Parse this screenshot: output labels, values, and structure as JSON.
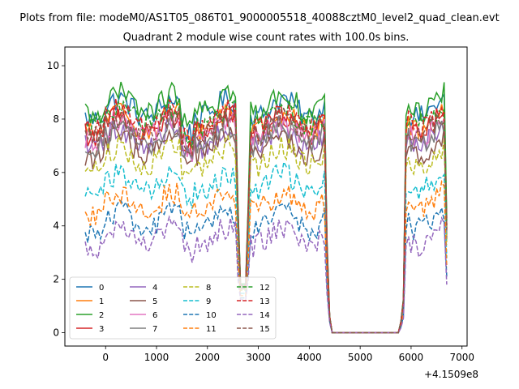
{
  "chart_data": {
    "type": "line",
    "suptitle": "Plots from file: modeM0/AS1T05_086T01_9000005518_40088cztM0_level2_quad_clean.evt",
    "title": "Quadrant 2 module wise count rates with 100.0s bins.",
    "xlabel": "",
    "ylabel": "",
    "x_offset_label": "+4.1509e8",
    "xlim": [
      -800,
      7100
    ],
    "ylim": [
      -0.5,
      10.7
    ],
    "x_ticks": [
      0,
      1000,
      2000,
      3000,
      4000,
      5000,
      6000,
      7000
    ],
    "x_tick_labels": [
      "0",
      "1000",
      "2000",
      "3000",
      "4000",
      "5000",
      "6000",
      "7000"
    ],
    "y_ticks": [
      0,
      2,
      4,
      6,
      8,
      10
    ],
    "y_tick_labels": [
      "0",
      "2",
      "4",
      "6",
      "8",
      "10"
    ],
    "x_start": -400,
    "x_step": 100,
    "x_end": 6700,
    "gap_range": [
      4450,
      5750
    ],
    "dips": [
      {
        "x": 2700,
        "depth": 0.12
      }
    ],
    "segments": [
      {
        "start": -400,
        "end": 2600
      },
      {
        "start": 2800,
        "end": 4300
      },
      {
        "start": 5900,
        "end": 6700
      }
    ],
    "legend_columns": 4,
    "legend_location": "lower left",
    "series": [
      {
        "name": "0",
        "color": "#1f77b4",
        "dash": "solid",
        "level": 8.4
      },
      {
        "name": "1",
        "color": "#ff7f0e",
        "dash": "solid",
        "level": 7.9
      },
      {
        "name": "2",
        "color": "#2ca02c",
        "dash": "solid",
        "level": 8.6
      },
      {
        "name": "3",
        "color": "#d62728",
        "dash": "solid",
        "level": 7.8
      },
      {
        "name": "4",
        "color": "#9467bd",
        "dash": "solid",
        "level": 7.3
      },
      {
        "name": "5",
        "color": "#8c564b",
        "dash": "solid",
        "level": 7.0
      },
      {
        "name": "6",
        "color": "#e377c2",
        "dash": "solid",
        "level": 7.6
      },
      {
        "name": "7",
        "color": "#7f7f7f",
        "dash": "solid",
        "level": 7.4
      },
      {
        "name": "8",
        "color": "#bcbd22",
        "dash": "dashed",
        "level": 6.6
      },
      {
        "name": "9",
        "color": "#17becf",
        "dash": "dashed",
        "level": 5.6
      },
      {
        "name": "10",
        "color": "#1f77b4",
        "dash": "dashed",
        "level": 4.2
      },
      {
        "name": "11",
        "color": "#ff7f0e",
        "dash": "dashed",
        "level": 4.9
      },
      {
        "name": "12",
        "color": "#2ca02c",
        "dash": "dashed",
        "level": 8.1
      },
      {
        "name": "13",
        "color": "#d62728",
        "dash": "dashed",
        "level": 8.0
      },
      {
        "name": "14",
        "color": "#9467bd",
        "dash": "dashed",
        "level": 3.6
      },
      {
        "name": "15",
        "color": "#8c564b",
        "dash": "dashed",
        "level": 7.7
      }
    ]
  }
}
